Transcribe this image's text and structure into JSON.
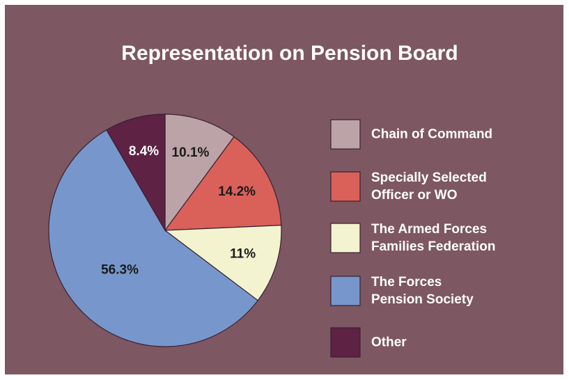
{
  "chart_data": {
    "type": "pie",
    "title": "Representation on Pension Board",
    "categories": [
      "Chain of Command",
      "Specially Selected\nOfficer or WO",
      "The Armed Forces\nFamilies Federation",
      "The Forces\nPension Society",
      "Other"
    ],
    "values": [
      10.1,
      14.2,
      11,
      56.3,
      8.4
    ],
    "value_labels": [
      "10.1%",
      "14.2%",
      "11%",
      "56.3%",
      "8.4%"
    ],
    "colors": [
      "#bba3a8",
      "#d9615a",
      "#f3f4cf",
      "#7797cc",
      "#5e2244"
    ]
  }
}
